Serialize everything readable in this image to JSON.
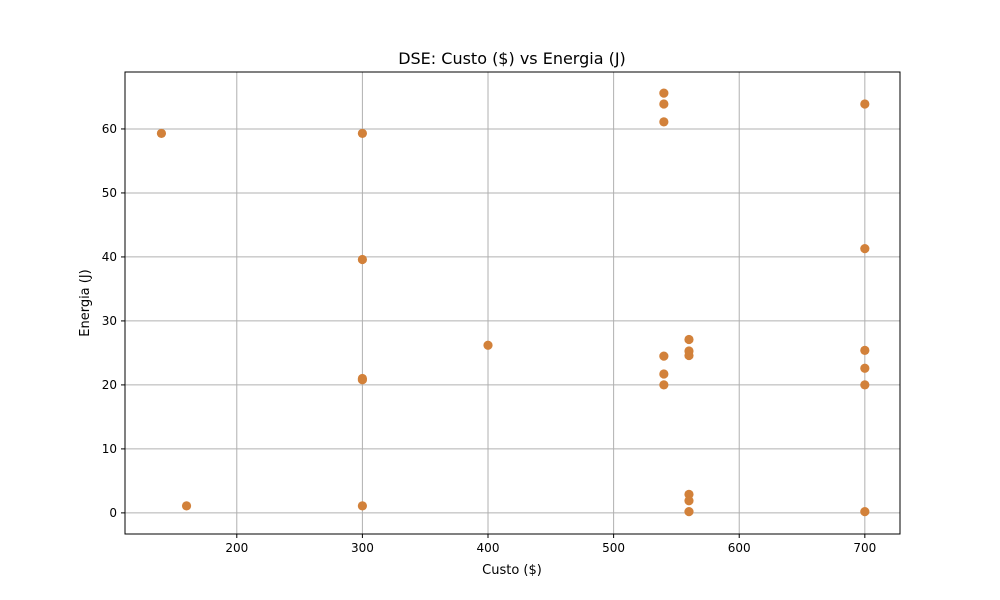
{
  "chart_data": {
    "type": "scatter",
    "title": "DSE: Custo ($) vs Energia (J)",
    "xlabel": "Custo ($)",
    "ylabel": "Energia (J)",
    "xlim": [
      111,
      728
    ],
    "ylim": [
      -3.3,
      68.9
    ],
    "xticks": [
      200,
      300,
      400,
      500,
      600,
      700
    ],
    "yticks": [
      0,
      10,
      20,
      30,
      40,
      50,
      60
    ],
    "grid": true,
    "marker_color": "#d2813a",
    "points": [
      {
        "x": 140,
        "y": 59.3
      },
      {
        "x": 160,
        "y": 1.1
      },
      {
        "x": 300,
        "y": 59.3
      },
      {
        "x": 300,
        "y": 39.6
      },
      {
        "x": 300,
        "y": 21.0
      },
      {
        "x": 300,
        "y": 20.8
      },
      {
        "x": 300,
        "y": 1.1
      },
      {
        "x": 400,
        "y": 26.2
      },
      {
        "x": 540,
        "y": 65.6
      },
      {
        "x": 540,
        "y": 63.9
      },
      {
        "x": 540,
        "y": 61.1
      },
      {
        "x": 540,
        "y": 24.5
      },
      {
        "x": 540,
        "y": 21.7
      },
      {
        "x": 540,
        "y": 20.0
      },
      {
        "x": 560,
        "y": 27.1
      },
      {
        "x": 560,
        "y": 25.3
      },
      {
        "x": 560,
        "y": 24.6
      },
      {
        "x": 560,
        "y": 2.9
      },
      {
        "x": 560,
        "y": 1.9
      },
      {
        "x": 560,
        "y": 0.2
      },
      {
        "x": 700,
        "y": 63.9
      },
      {
        "x": 700,
        "y": 41.3
      },
      {
        "x": 700,
        "y": 25.4
      },
      {
        "x": 700,
        "y": 22.6
      },
      {
        "x": 700,
        "y": 20.0
      },
      {
        "x": 700,
        "y": 0.2
      }
    ]
  }
}
